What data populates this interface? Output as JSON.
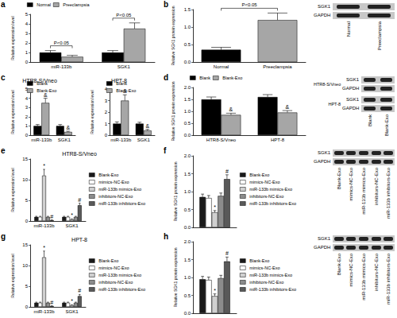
{
  "chart_data": [
    {
      "panel": "a",
      "type": "bar",
      "ylabel": "Relative expression level",
      "categories": [
        "miR-133b",
        "SGK1"
      ],
      "series": [
        {
          "name": "Normal",
          "color": "#000000",
          "values": [
            1.0,
            1.0
          ],
          "errors": [
            0.2,
            0.2
          ]
        },
        {
          "name": "Preeclampsia",
          "color": "#a6a6a6",
          "values": [
            0.55,
            3.5
          ],
          "errors": [
            0.15,
            0.6
          ]
        }
      ],
      "ylim": [
        0,
        5
      ],
      "yticks": [
        0,
        1,
        2,
        3,
        4,
        5
      ],
      "grid": false,
      "legend": "top",
      "annotations": [
        {
          "text": "P<0.05",
          "category": "miR-133b"
        },
        {
          "text": "P<0.05",
          "category": "SGK1"
        }
      ]
    },
    {
      "panel": "b",
      "type": "bar",
      "ylabel": "Relative SGK1 protein expression",
      "categories": [
        "Normal",
        "Preeclampsia"
      ],
      "values": [
        0.35,
        1.2
      ],
      "errors": [
        0.07,
        0.2
      ],
      "colors": [
        "#000000",
        "#a6a6a6"
      ],
      "ylim": [
        0,
        1.5
      ],
      "yticks": [
        {
          "value": 0,
          "label": "0.0"
        },
        0.5,
        {
          "value": 1,
          "label": "1.0"
        },
        1.5
      ],
      "grid": false,
      "annotations": [
        {
          "text": "P<0.05"
        }
      ],
      "blot": {
        "rows": [
          "SGK1",
          "GAPDH"
        ],
        "columns": [
          "Normal",
          "Preeclampsia"
        ]
      }
    },
    {
      "panel": "c",
      "type": "bar",
      "title": "HTR8-S/Vneo",
      "ylabel": "Relative expression level",
      "categories": [
        "miR-133b",
        "SGK1"
      ],
      "series": [
        {
          "name": "Blank",
          "color": "#000000",
          "values": [
            1.0,
            1.0
          ],
          "errors": [
            0.15,
            0.15
          ]
        },
        {
          "name": "Blank-Exo",
          "color": "#a6a6a6",
          "values": [
            3.5,
            0.35
          ],
          "errors": [
            0.5,
            0.08
          ]
        }
      ],
      "ylim": [
        0,
        5
      ],
      "yticks": [
        0,
        1,
        2,
        3,
        4,
        5
      ],
      "grid": false,
      "legend": "top",
      "annotations": [
        {
          "text": "&",
          "series": "Blank-Exo",
          "category": "miR-133b"
        },
        {
          "text": "&",
          "series": "Blank-Exo",
          "category": "SGK1"
        }
      ]
    },
    {
      "type": "bar",
      "title": "HPT-8",
      "ylabel": "Relative expression level",
      "categories": [
        "miR-133b",
        "SGK1"
      ],
      "series": [
        {
          "name": "Blank",
          "color": "#000000",
          "values": [
            1.0,
            1.0
          ],
          "errors": [
            0.15,
            0.12
          ]
        },
        {
          "name": "Blank-Exo",
          "color": "#a6a6a6",
          "values": [
            3.0,
            0.4
          ],
          "errors": [
            0.5,
            0.1
          ]
        }
      ],
      "ylim": [
        0,
        4
      ],
      "yticks": [
        0,
        1,
        2,
        3,
        4
      ],
      "grid": false,
      "legend": "top",
      "annotations": [
        {
          "text": "&",
          "series": "Blank-Exo",
          "category": "miR-133b"
        },
        {
          "text": "&",
          "series": "Blank-Exo",
          "category": "SGK1"
        }
      ]
    },
    {
      "panel": "d",
      "type": "bar",
      "ylabel": "Relative SGK1 protein expression",
      "categories": [
        "HTR8-S/Vneo",
        "HPT-8"
      ],
      "series": [
        {
          "name": "Blank",
          "color": "#000000",
          "values": [
            1.5,
            1.6
          ],
          "errors": [
            0.1,
            0.1
          ]
        },
        {
          "name": "Blank-Exo",
          "color": "#a6a6a6",
          "values": [
            0.85,
            0.95
          ],
          "errors": [
            0.07,
            0.08
          ]
        }
      ],
      "ylim": [
        0,
        2
      ],
      "yticks": [
        {
          "value": 0,
          "label": "0.0"
        },
        0.5,
        {
          "value": 1,
          "label": "1.0"
        },
        1.5,
        {
          "value": 2,
          "label": "2.0"
        }
      ],
      "grid": false,
      "legend": "top",
      "annotations": [
        {
          "text": "&",
          "series": "Blank-Exo",
          "category": "HTR8-S/Vneo"
        },
        {
          "text": "&",
          "series": "Blank-Exo",
          "category": "HPT-8"
        }
      ],
      "blot": {
        "rows": [
          "SGK1",
          "GAPDH",
          "SGK1",
          "GAPDH"
        ],
        "groups": [
          "HTR8-S/Vneo",
          "HPT-8"
        ],
        "columns": [
          "Blank",
          "Blank-Exo"
        ]
      }
    },
    {
      "panel": "e",
      "type": "bar",
      "title": "HTR8-S/Vneo",
      "ylabel": "Relative expression level",
      "categories": [
        "miR-133b",
        "SGK1"
      ],
      "series": [
        {
          "name": "Blank-Exo",
          "color": "#1a1a1a",
          "values": [
            1.0,
            1.0
          ],
          "errors": [
            0.15,
            0.15
          ]
        },
        {
          "name": "mimics-NC-Exo",
          "color": "#ffffff",
          "values": [
            1.0,
            1.0
          ],
          "errors": [
            0.15,
            0.15
          ]
        },
        {
          "name": "miR-133b mimics-Exo",
          "color": "#d0d0d0",
          "values": [
            11.0,
            0.4
          ],
          "errors": [
            1.5,
            0.1
          ]
        },
        {
          "name": "inhibitors-NC-Exo",
          "color": "#8c8c8c",
          "values": [
            1.0,
            1.0
          ],
          "errors": [
            0.15,
            0.15
          ]
        },
        {
          "name": "miR-133b inhibitors-Exo",
          "color": "#595959",
          "values": [
            0.2,
            3.8
          ],
          "errors": [
            0.05,
            0.5
          ]
        }
      ],
      "ylim": [
        0,
        15
      ],
      "yticks": [
        0,
        5,
        10,
        15
      ],
      "grid": false,
      "legend": "right",
      "annotations": [
        {
          "text": "*",
          "series": "miR-133b mimics-Exo",
          "category": "miR-133b"
        },
        {
          "text": "*",
          "series": "miR-133b mimics-Exo",
          "category": "SGK1"
        },
        {
          "text": "#",
          "series": "miR-133b inhibitors-Exo",
          "category": "miR-133b"
        },
        {
          "text": "#",
          "series": "miR-133b inhibitors-Exo",
          "category": "SGK1"
        }
      ]
    },
    {
      "panel": "f",
      "type": "bar",
      "ylabel": "Relative SGK1 protein expression",
      "categories": [
        null
      ],
      "series": [
        {
          "name": "Blank-Exo",
          "color": "#1a1a1a",
          "values": [
            0.85
          ],
          "errors": [
            0.08
          ]
        },
        {
          "name": "mimics-NC-Exo",
          "color": "#ffffff",
          "values": [
            0.82
          ],
          "errors": [
            0.07
          ]
        },
        {
          "name": "miR-133b mimics-Exo",
          "color": "#d0d0d0",
          "values": [
            0.42
          ],
          "errors": [
            0.05
          ]
        },
        {
          "name": "inhibitors-NC-Exo",
          "color": "#8c8c8c",
          "values": [
            0.88
          ],
          "errors": [
            0.08
          ]
        },
        {
          "name": "miR-133b inhibitors-Exo",
          "color": "#595959",
          "values": [
            1.35
          ],
          "errors": [
            0.12
          ]
        }
      ],
      "ylim": [
        0,
        2
      ],
      "yticks": [
        {
          "value": 0,
          "label": "0.0"
        },
        0.5,
        {
          "value": 1,
          "label": "1.0"
        },
        1.5,
        {
          "value": 2,
          "label": "2.0"
        }
      ],
      "grid": false,
      "legend": "right",
      "annotations": [
        {
          "text": "*",
          "series": "miR-133b mimics-Exo"
        },
        {
          "text": "#",
          "series": "miR-133b inhibitors-Exo"
        }
      ],
      "blot": {
        "rows": [
          "SGK1",
          "GAPDH"
        ],
        "columns": [
          "Blank-Exo",
          "mimics-NC-Exo",
          "miR-133b mimics-Exo",
          "inhibitors-NC-Exo",
          "miR-133b inhibitors-Exo"
        ]
      }
    },
    {
      "panel": "g",
      "type": "bar",
      "title": "HPT-8",
      "ylabel": "Relative expression level",
      "categories": [
        "miR-133b",
        "SGK1"
      ],
      "series": [
        {
          "name": "Blank-Exo",
          "color": "#1a1a1a",
          "values": [
            1.0,
            1.0
          ],
          "errors": [
            0.15,
            0.15
          ]
        },
        {
          "name": "mimics-NC-Exo",
          "color": "#ffffff",
          "values": [
            1.0,
            1.0
          ],
          "errors": [
            0.15,
            0.15
          ]
        },
        {
          "name": "miR-133b mimics-Exo",
          "color": "#d0d0d0",
          "values": [
            12.0,
            0.4
          ],
          "errors": [
            1.5,
            0.1
          ]
        },
        {
          "name": "inhibitors-NC-Exo",
          "color": "#8c8c8c",
          "values": [
            1.0,
            1.0
          ],
          "errors": [
            0.15,
            0.15
          ]
        },
        {
          "name": "miR-133b inhibitors-Exo",
          "color": "#595959",
          "values": [
            0.2,
            2.6
          ],
          "errors": [
            0.05,
            0.4
          ]
        }
      ],
      "ylim": [
        0,
        15
      ],
      "yticks": [
        0,
        5,
        10,
        15
      ],
      "grid": false,
      "legend": "right",
      "annotations": [
        {
          "text": "*",
          "series": "miR-133b mimics-Exo",
          "category": "miR-133b"
        },
        {
          "text": "*",
          "series": "miR-133b mimics-Exo",
          "category": "SGK1"
        },
        {
          "text": "#",
          "series": "miR-133b inhibitors-Exo",
          "category": "miR-133b"
        },
        {
          "text": "#",
          "series": "miR-133b inhibitors-Exo",
          "category": "SGK1"
        }
      ]
    },
    {
      "panel": "h",
      "type": "bar",
      "ylabel": "Relative SGK1 protein expression",
      "categories": [
        null
      ],
      "series": [
        {
          "name": "Blank-Exo",
          "color": "#1a1a1a",
          "values": [
            0.95
          ],
          "errors": [
            0.08
          ]
        },
        {
          "name": "mimics-NC-Exo",
          "color": "#ffffff",
          "values": [
            0.93
          ],
          "errors": [
            0.08
          ]
        },
        {
          "name": "miR-133b mimics-Exo",
          "color": "#d0d0d0",
          "values": [
            0.48
          ],
          "errors": [
            0.06
          ]
        },
        {
          "name": "inhibitors-NC-Exo",
          "color": "#8c8c8c",
          "values": [
            0.98
          ],
          "errors": [
            0.08
          ]
        },
        {
          "name": "miR-133b inhibitors-Exo",
          "color": "#595959",
          "values": [
            1.45
          ],
          "errors": [
            0.12
          ]
        }
      ],
      "ylim": [
        0,
        2
      ],
      "yticks": [
        {
          "value": 0,
          "label": "0.0"
        },
        0.5,
        {
          "value": 1,
          "label": "1.0"
        },
        1.5,
        {
          "value": 2,
          "label": "2.0"
        }
      ],
      "grid": false,
      "legend": "right",
      "annotations": [
        {
          "text": "*",
          "series": "miR-133b mimics-Exo"
        },
        {
          "text": "#",
          "series": "miR-133b inhibitors-Exo"
        }
      ],
      "blot": {
        "rows": [
          "SGK1",
          "GAPDH"
        ],
        "columns": [
          "Blank-Exo",
          "mimics-NC-Exo",
          "miR-133b mimics-Exo",
          "inhibitors-NC-Exo",
          "miR-133b inhibitors-Exo"
        ]
      }
    }
  ]
}
